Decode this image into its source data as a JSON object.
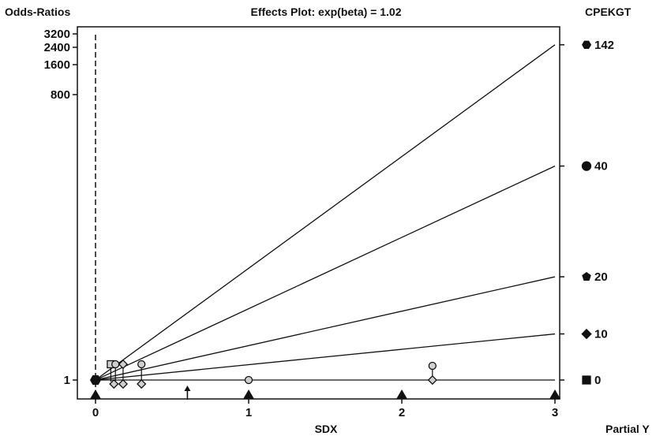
{
  "chart_data": {
    "type": "line",
    "title": "Effects Plot: exp(beta) = 1.02",
    "ylabel": "Odds-Ratios",
    "xlabel": "SDX",
    "right_label_top": "CPEKGT",
    "right_label_bottom": "Partial Y",
    "x_ticks": [
      0,
      1,
      2,
      3
    ],
    "x_tick_labels": [
      "0",
      "1",
      "2",
      "3"
    ],
    "xlim": [
      0,
      3
    ],
    "y_ticks": [
      1,
      800,
      1600,
      2400,
      3200
    ],
    "y_tick_labels": [
      "1",
      "800",
      "1600",
      "2400",
      "3200"
    ],
    "y_scale": "custom-compressed",
    "grid": false,
    "reference_line_x": 0,
    "x_markers_triangle": [
      0,
      1,
      2,
      3
    ],
    "x_marker_arrow": 0.6,
    "series": [
      {
        "name": "142",
        "marker": "hexagon",
        "x": [
          0,
          3
        ],
        "y": [
          1,
          2550
        ]
      },
      {
        "name": "40",
        "marker": "circle",
        "x": [
          0,
          3
        ],
        "y": [
          1,
          600
        ]
      },
      {
        "name": "20",
        "marker": "pentagon",
        "x": [
          0,
          3
        ],
        "y": [
          1,
          290
        ]
      },
      {
        "name": "10",
        "marker": "diamond",
        "x": [
          0,
          3
        ],
        "y": [
          1,
          130
        ]
      },
      {
        "name": "0",
        "marker": "square",
        "x": [
          0,
          3
        ],
        "y": [
          1,
          1
        ]
      }
    ],
    "points": [
      {
        "x": 0,
        "y": 1,
        "marker": "hexagon"
      },
      {
        "x": 0.1,
        "y": 12,
        "marker": "square"
      },
      {
        "x": 0.13,
        "y": 12,
        "marker": "circle"
      },
      {
        "x": 0.18,
        "y": 12,
        "marker": "diamond"
      },
      {
        "x": 0.3,
        "y": 12,
        "marker": "circle"
      },
      {
        "x": 0.12,
        "y": 1,
        "marker": "diamond"
      },
      {
        "x": 0.18,
        "y": 1,
        "marker": "diamond"
      },
      {
        "x": 0.3,
        "y": 1,
        "marker": "diamond"
      },
      {
        "x": 1,
        "y": 1,
        "marker": "circle"
      },
      {
        "x": 2.2,
        "y": 10,
        "marker": "circle"
      },
      {
        "x": 2.2,
        "y": 1,
        "marker": "diamond"
      }
    ]
  }
}
